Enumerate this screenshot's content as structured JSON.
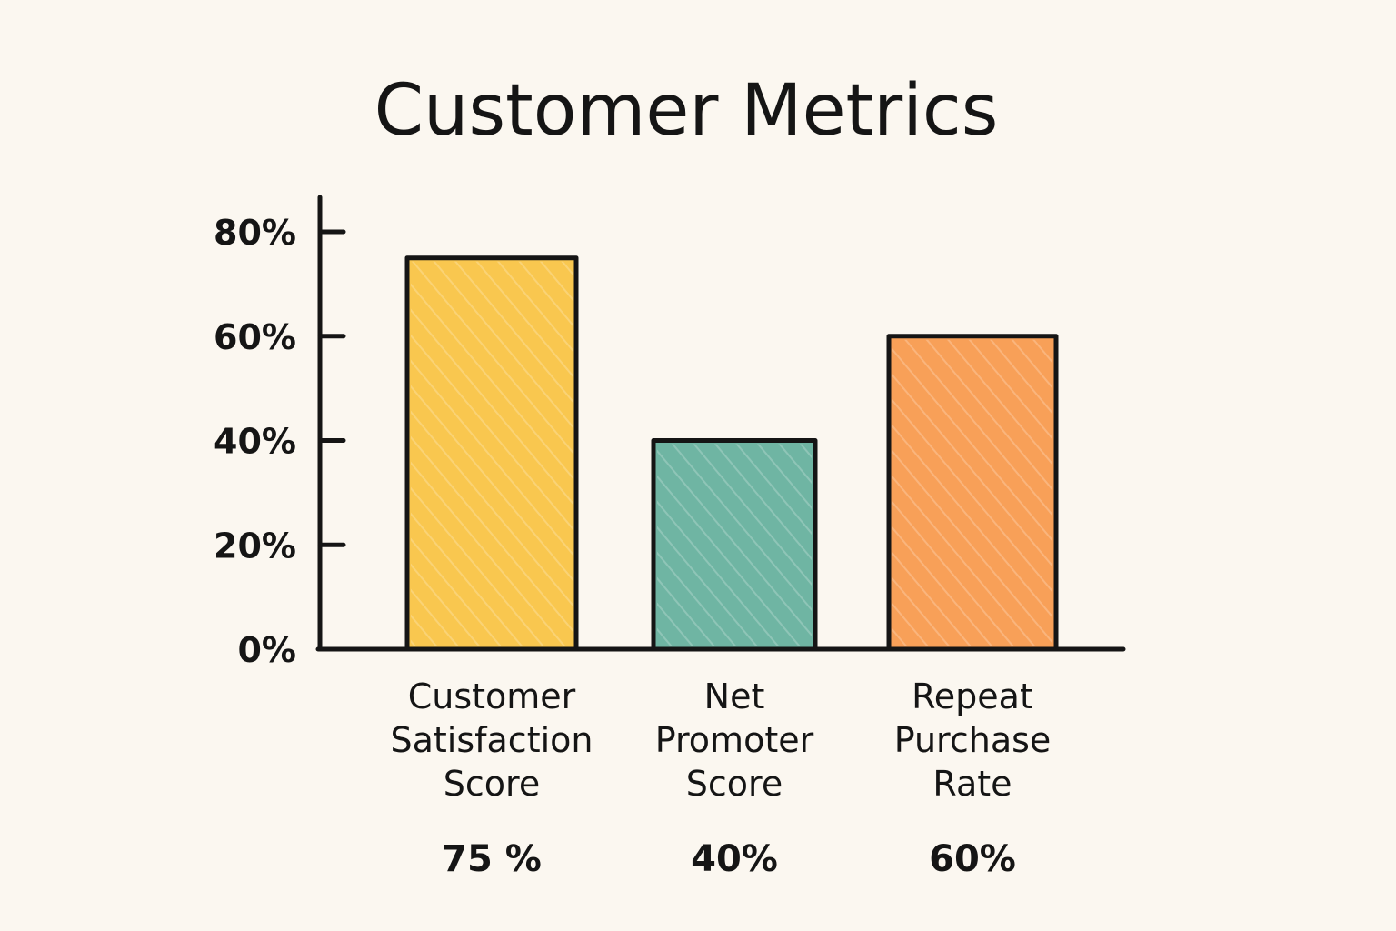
{
  "chart_data": {
    "type": "bar",
    "title": "Customer Metrics",
    "categories": [
      [
        "Customer",
        "Satisfaction",
        "Score"
      ],
      [
        "Net",
        "Promoter",
        "Score"
      ],
      [
        "Repeat",
        "Purchase",
        "Rate"
      ]
    ],
    "values": [
      75,
      40,
      60
    ],
    "value_labels": [
      "75 %",
      "40%",
      "60%"
    ],
    "bar_colors": [
      "#f9c74f",
      "#6fb5a3",
      "#f8a058"
    ],
    "yticks": [
      0,
      20,
      40,
      60,
      80
    ],
    "ytick_labels": [
      "0%",
      "20%",
      "40%",
      "60%",
      "80%"
    ],
    "ylim": [
      0,
      80
    ],
    "grid": false,
    "legend": "none"
  }
}
